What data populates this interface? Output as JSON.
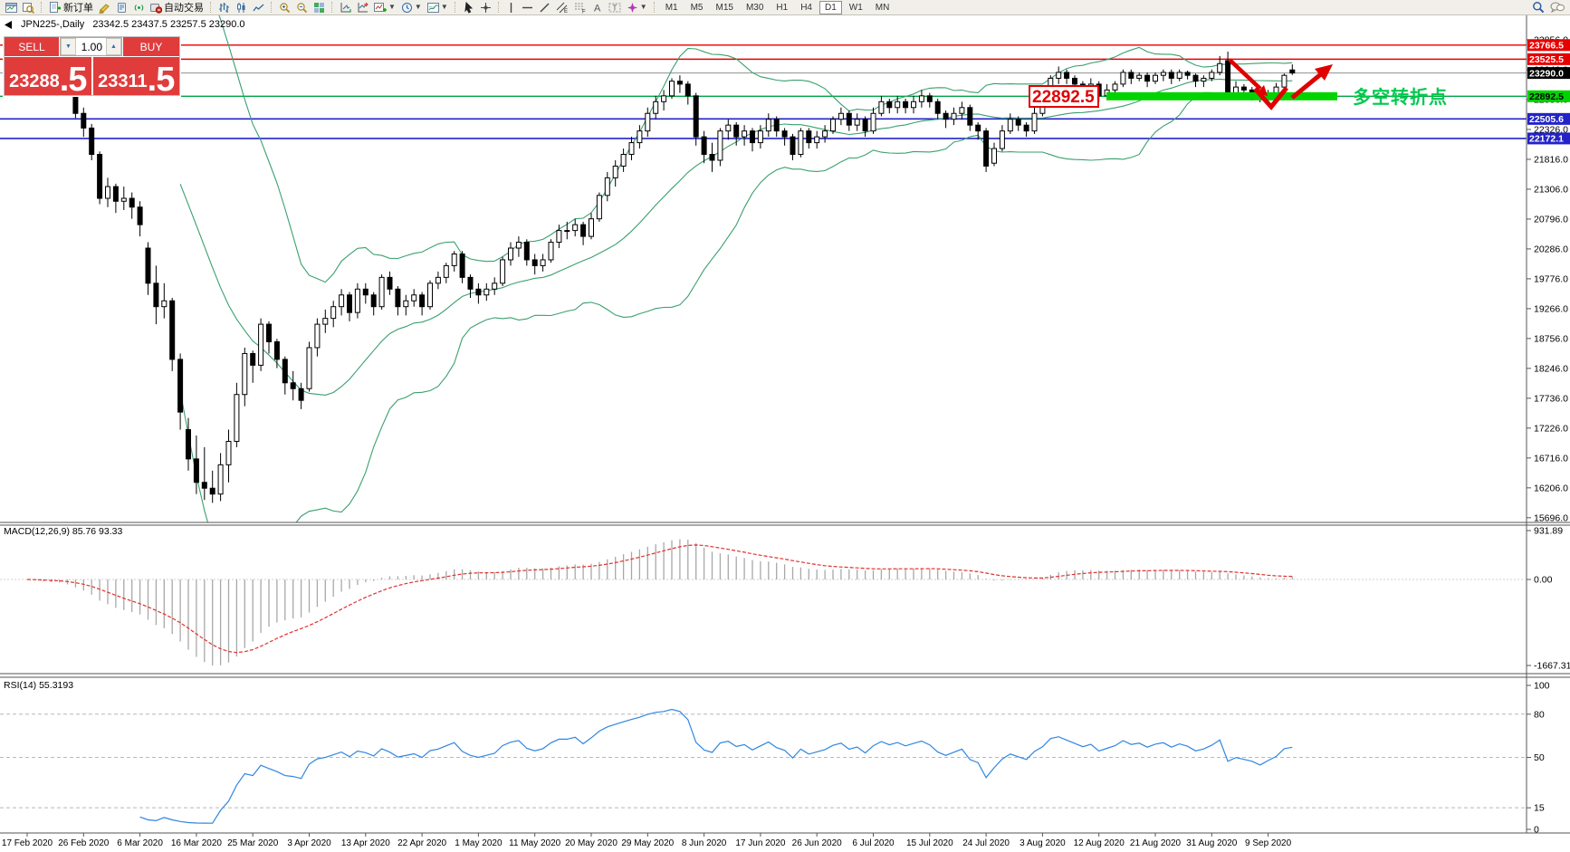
{
  "toolbar": {
    "new_order_label": "新订单",
    "auto_trading_label": "自动交易",
    "timeframes": [
      "M1",
      "M5",
      "M15",
      "M30",
      "H1",
      "H4",
      "D1",
      "W1",
      "MN"
    ],
    "active_timeframe": "D1"
  },
  "symbol_line": {
    "title": "JPN225-,Daily",
    "ohlc": "23342.5 23437.5 23257.5 23290.0"
  },
  "trade_panel": {
    "sell_label": "SELL",
    "buy_label": "BUY",
    "volume": "1.00",
    "sell_price": "23288",
    "sell_price_frac": ".5",
    "buy_price": "23311",
    "buy_price_frac": ".5"
  },
  "macd_panel": {
    "label": "MACD(12,26,9) 85.76 93.33",
    "axis_labels": [
      "931.89",
      "0.00",
      "-1667.31"
    ]
  },
  "rsi_panel": {
    "label": "RSI(14) 55.3193",
    "axis_labels": [
      "100",
      "80",
      "50",
      "15",
      "0"
    ],
    "levels": [
      80,
      50,
      15
    ]
  },
  "annotations": {
    "price_box_label": "22892.5",
    "turning_point_text": "多空转折点",
    "accent_red": "#e00000",
    "accent_green": "#00d300"
  },
  "chart_data": {
    "type": "candlestick",
    "symbol": "JPN225-",
    "timeframe": "Daily",
    "y_axis": {
      "max": 23856.0,
      "step": 510,
      "count": 17
    },
    "x_labels": [
      "17 Feb 2020",
      "26 Feb 2020",
      "6 Mar 2020",
      "16 Mar 2020",
      "25 Mar 2020",
      "3 Apr 2020",
      "13 Apr 2020",
      "22 Apr 2020",
      "1 May 2020",
      "11 May 2020",
      "20 May 2020",
      "29 May 2020",
      "8 Jun 2020",
      "17 Jun 2020",
      "26 Jun 2020",
      "6 Jul 2020",
      "15 Jul 2020",
      "24 Jul 2020",
      "3 Aug 2020",
      "12 Aug 2020",
      "21 Aug 2020",
      "31 Aug 2020",
      "9 Sep 2020"
    ],
    "price_lines": [
      {
        "price": 23766.5,
        "label": "23766.5",
        "color": "#e60000",
        "badge_bg": "#e60000",
        "badge_fg": "#ffffff",
        "w": 1.4
      },
      {
        "price": 23525.5,
        "label": "23525.5",
        "color": "#e60000",
        "badge_bg": "#e60000",
        "badge_fg": "#ffffff",
        "w": 1.4
      },
      {
        "price": 23290.0,
        "label": "23290.0",
        "color": "#8f8f8f",
        "badge_bg": "#000000",
        "badge_fg": "#ffffff",
        "w": 1
      },
      {
        "price": 22892.5,
        "label": "22892.5",
        "color": "#00a344",
        "badge_bg": "#00d300",
        "badge_fg": "#000000",
        "w": 1.3
      },
      {
        "price": 22505.6,
        "label": "22505.6",
        "color": "#2323c8",
        "badge_bg": "#2323c8",
        "badge_fg": "#ffffff",
        "w": 1.6
      },
      {
        "price": 22172.1,
        "label": "22172.1",
        "color": "#2323c8",
        "badge_bg": "#2323c8",
        "badge_fg": "#ffffff",
        "w": 1.6
      }
    ],
    "indicators": {
      "bollinger": [
        20,
        2
      ],
      "macd": [
        12,
        26,
        9
      ],
      "rsi": 14
    },
    "candles": [
      [
        23700,
        23780,
        23600,
        23680
      ],
      [
        23680,
        23720,
        23380,
        23420
      ],
      [
        23420,
        23500,
        23330,
        23400
      ],
      [
        23400,
        23450,
        23240,
        23350
      ],
      [
        23350,
        23480,
        23300,
        23410
      ],
      [
        23150,
        23200,
        22900,
        23000
      ],
      [
        23000,
        23080,
        22520,
        22600
      ],
      [
        22600,
        22700,
        22200,
        22350
      ],
      [
        22350,
        22420,
        21800,
        21900
      ],
      [
        21900,
        21950,
        21050,
        21150
      ],
      [
        21150,
        21500,
        21000,
        21350
      ],
      [
        21350,
        21400,
        20900,
        21100
      ],
      [
        21100,
        21350,
        20950,
        21150
      ],
      [
        21150,
        21250,
        20800,
        21000
      ],
      [
        21000,
        21100,
        20500,
        20700
      ],
      [
        20300,
        20400,
        19500,
        19700
      ],
      [
        19700,
        20000,
        19000,
        19300
      ],
      [
        19300,
        19700,
        19100,
        19400
      ],
      [
        19400,
        19450,
        18200,
        18400
      ],
      [
        18400,
        18500,
        17200,
        17500
      ],
      [
        17200,
        17400,
        16500,
        16700
      ],
      [
        16700,
        17100,
        16100,
        16300
      ],
      [
        16300,
        16900,
        16000,
        16200
      ],
      [
        16200,
        16500,
        15950,
        16100
      ],
      [
        16100,
        16800,
        15980,
        16600
      ],
      [
        16600,
        17200,
        16300,
        17000
      ],
      [
        17000,
        18000,
        16900,
        17800
      ],
      [
        17800,
        18600,
        17600,
        18500
      ],
      [
        18500,
        18550,
        18000,
        18300
      ],
      [
        18300,
        19100,
        18200,
        19000
      ],
      [
        19000,
        19050,
        18500,
        18700
      ],
      [
        18700,
        18750,
        18250,
        18400
      ],
      [
        18400,
        18450,
        17800,
        18000
      ],
      [
        18000,
        18200,
        17700,
        17900
      ],
      [
        17900,
        18000,
        17550,
        17700
      ],
      [
        17900,
        18700,
        17850,
        18600
      ],
      [
        18600,
        19100,
        18450,
        19000
      ],
      [
        19000,
        19250,
        18850,
        19100
      ],
      [
        19100,
        19400,
        18950,
        19300
      ],
      [
        19300,
        19600,
        19150,
        19500
      ],
      [
        19500,
        19550,
        19050,
        19200
      ],
      [
        19200,
        19700,
        19100,
        19600
      ],
      [
        19600,
        19700,
        19350,
        19500
      ],
      [
        19500,
        19550,
        19150,
        19300
      ],
      [
        19300,
        19850,
        19250,
        19800
      ],
      [
        19800,
        19900,
        19500,
        19600
      ],
      [
        19600,
        19650,
        19150,
        19300
      ],
      [
        19300,
        19500,
        19150,
        19400
      ],
      [
        19400,
        19600,
        19300,
        19500
      ],
      [
        19500,
        19550,
        19150,
        19300
      ],
      [
        19300,
        19750,
        19250,
        19700
      ],
      [
        19700,
        19900,
        19600,
        19800
      ],
      [
        19800,
        20050,
        19700,
        20000
      ],
      [
        20000,
        20250,
        19900,
        20200
      ],
      [
        20200,
        20250,
        19700,
        19800
      ],
      [
        19800,
        19850,
        19450,
        19600
      ],
      [
        19600,
        19700,
        19350,
        19500
      ],
      [
        19500,
        19700,
        19400,
        19600
      ],
      [
        19600,
        19800,
        19500,
        19700
      ],
      [
        19700,
        20150,
        19650,
        20100
      ],
      [
        20100,
        20400,
        20000,
        20300
      ],
      [
        20300,
        20500,
        20150,
        20400
      ],
      [
        20400,
        20450,
        20000,
        20100
      ],
      [
        20100,
        20200,
        19850,
        20000
      ],
      [
        20000,
        20200,
        19900,
        20100
      ],
      [
        20100,
        20450,
        20050,
        20400
      ],
      [
        20400,
        20700,
        20300,
        20600
      ],
      [
        20600,
        20750,
        20450,
        20600
      ],
      [
        20600,
        20800,
        20500,
        20700
      ],
      [
        20700,
        20750,
        20350,
        20500
      ],
      [
        20500,
        20900,
        20450,
        20800
      ],
      [
        20800,
        21250,
        20750,
        21200
      ],
      [
        21200,
        21600,
        21100,
        21500
      ],
      [
        21500,
        21800,
        21350,
        21700
      ],
      [
        21700,
        22000,
        21600,
        21900
      ],
      [
        21900,
        22200,
        21800,
        22100
      ],
      [
        22100,
        22400,
        22000,
        22300
      ],
      [
        22300,
        22700,
        22200,
        22600
      ],
      [
        22600,
        22900,
        22500,
        22800
      ],
      [
        22800,
        23000,
        22650,
        22900
      ],
      [
        22900,
        23200,
        22850,
        23150
      ],
      [
        23150,
        23250,
        22950,
        23100
      ],
      [
        23100,
        23150,
        22750,
        22900
      ],
      [
        22900,
        22950,
        22050,
        22200
      ],
      [
        22200,
        22300,
        21750,
        21900
      ],
      [
        21900,
        22100,
        21600,
        21800
      ],
      [
        21800,
        22350,
        21700,
        22300
      ],
      [
        22300,
        22500,
        22150,
        22400
      ],
      [
        22400,
        22450,
        22050,
        22200
      ],
      [
        22200,
        22400,
        22050,
        22300
      ],
      [
        22300,
        22350,
        21950,
        22100
      ],
      [
        22100,
        22400,
        22000,
        22300
      ],
      [
        22300,
        22600,
        22200,
        22500
      ],
      [
        22500,
        22550,
        22200,
        22300
      ],
      [
        22300,
        22350,
        22050,
        22200
      ],
      [
        22200,
        22250,
        21800,
        21900
      ],
      [
        21900,
        22350,
        21850,
        22300
      ],
      [
        22300,
        22350,
        22000,
        22100
      ],
      [
        22100,
        22300,
        22000,
        22200
      ],
      [
        22200,
        22400,
        22100,
        22300
      ],
      [
        22300,
        22550,
        22250,
        22500
      ],
      [
        22500,
        22700,
        22400,
        22600
      ],
      [
        22600,
        22650,
        22300,
        22400
      ],
      [
        22400,
        22600,
        22300,
        22500
      ],
      [
        22500,
        22550,
        22200,
        22300
      ],
      [
        22300,
        22700,
        22250,
        22600
      ],
      [
        22600,
        22900,
        22550,
        22800
      ],
      [
        22800,
        22850,
        22600,
        22700
      ],
      [
        22700,
        22900,
        22600,
        22800
      ],
      [
        22800,
        22850,
        22600,
        22700
      ],
      [
        22700,
        22900,
        22600,
        22800
      ],
      [
        22800,
        23000,
        22700,
        22900
      ],
      [
        22900,
        22950,
        22700,
        22800
      ],
      [
        22800,
        22850,
        22500,
        22600
      ],
      [
        22600,
        22650,
        22350,
        22500
      ],
      [
        22500,
        22700,
        22400,
        22600
      ],
      [
        22600,
        22800,
        22500,
        22700
      ],
      [
        22700,
        22750,
        22300,
        22400
      ],
      [
        22400,
        22450,
        22150,
        22300
      ],
      [
        22300,
        22350,
        21600,
        21700
      ],
      [
        21750,
        22100,
        21700,
        22000
      ],
      [
        22000,
        22400,
        21950,
        22300
      ],
      [
        22300,
        22600,
        22250,
        22500
      ],
      [
        22500,
        22550,
        22300,
        22400
      ],
      [
        22400,
        22450,
        22200,
        22300
      ],
      [
        22300,
        22700,
        22250,
        22600
      ],
      [
        22600,
        22900,
        22550,
        22800
      ],
      [
        22800,
        23250,
        22750,
        23200
      ],
      [
        23200,
        23400,
        23100,
        23300
      ],
      [
        23300,
        23350,
        23100,
        23200
      ],
      [
        23200,
        23250,
        23000,
        23100
      ],
      [
        23100,
        23150,
        22900,
        23000
      ],
      [
        23000,
        23200,
        22950,
        23100
      ],
      [
        23100,
        23150,
        22800,
        22900
      ],
      [
        22900,
        23100,
        22850,
        23000
      ],
      [
        23000,
        23150,
        22950,
        23100
      ],
      [
        23100,
        23350,
        23050,
        23300
      ],
      [
        23300,
        23350,
        23100,
        23200
      ],
      [
        23200,
        23300,
        23150,
        23250
      ],
      [
        23250,
        23300,
        23050,
        23150
      ],
      [
        23150,
        23300,
        23100,
        23250
      ],
      [
        23250,
        23350,
        23150,
        23300
      ],
      [
        23300,
        23350,
        23100,
        23200
      ],
      [
        23200,
        23350,
        23150,
        23300
      ],
      [
        23300,
        23330,
        23180,
        23250
      ],
      [
        23250,
        23280,
        23050,
        23150
      ],
      [
        23150,
        23250,
        23050,
        23200
      ],
      [
        23200,
        23350,
        23150,
        23300
      ],
      [
        23300,
        23580,
        23250,
        23450
      ],
      [
        23500,
        23655,
        22880,
        22950
      ],
      [
        22950,
        23150,
        22900,
        23050
      ],
      [
        23050,
        23100,
        22850,
        23000
      ],
      [
        23000,
        23050,
        22820,
        22950
      ],
      [
        22950,
        23000,
        22790,
        22850
      ],
      [
        22850,
        23000,
        22800,
        22950
      ],
      [
        22950,
        23120,
        22900,
        23050
      ],
      [
        23050,
        23280,
        23020,
        23250
      ],
      [
        23342,
        23437,
        23257,
        23290
      ]
    ]
  }
}
